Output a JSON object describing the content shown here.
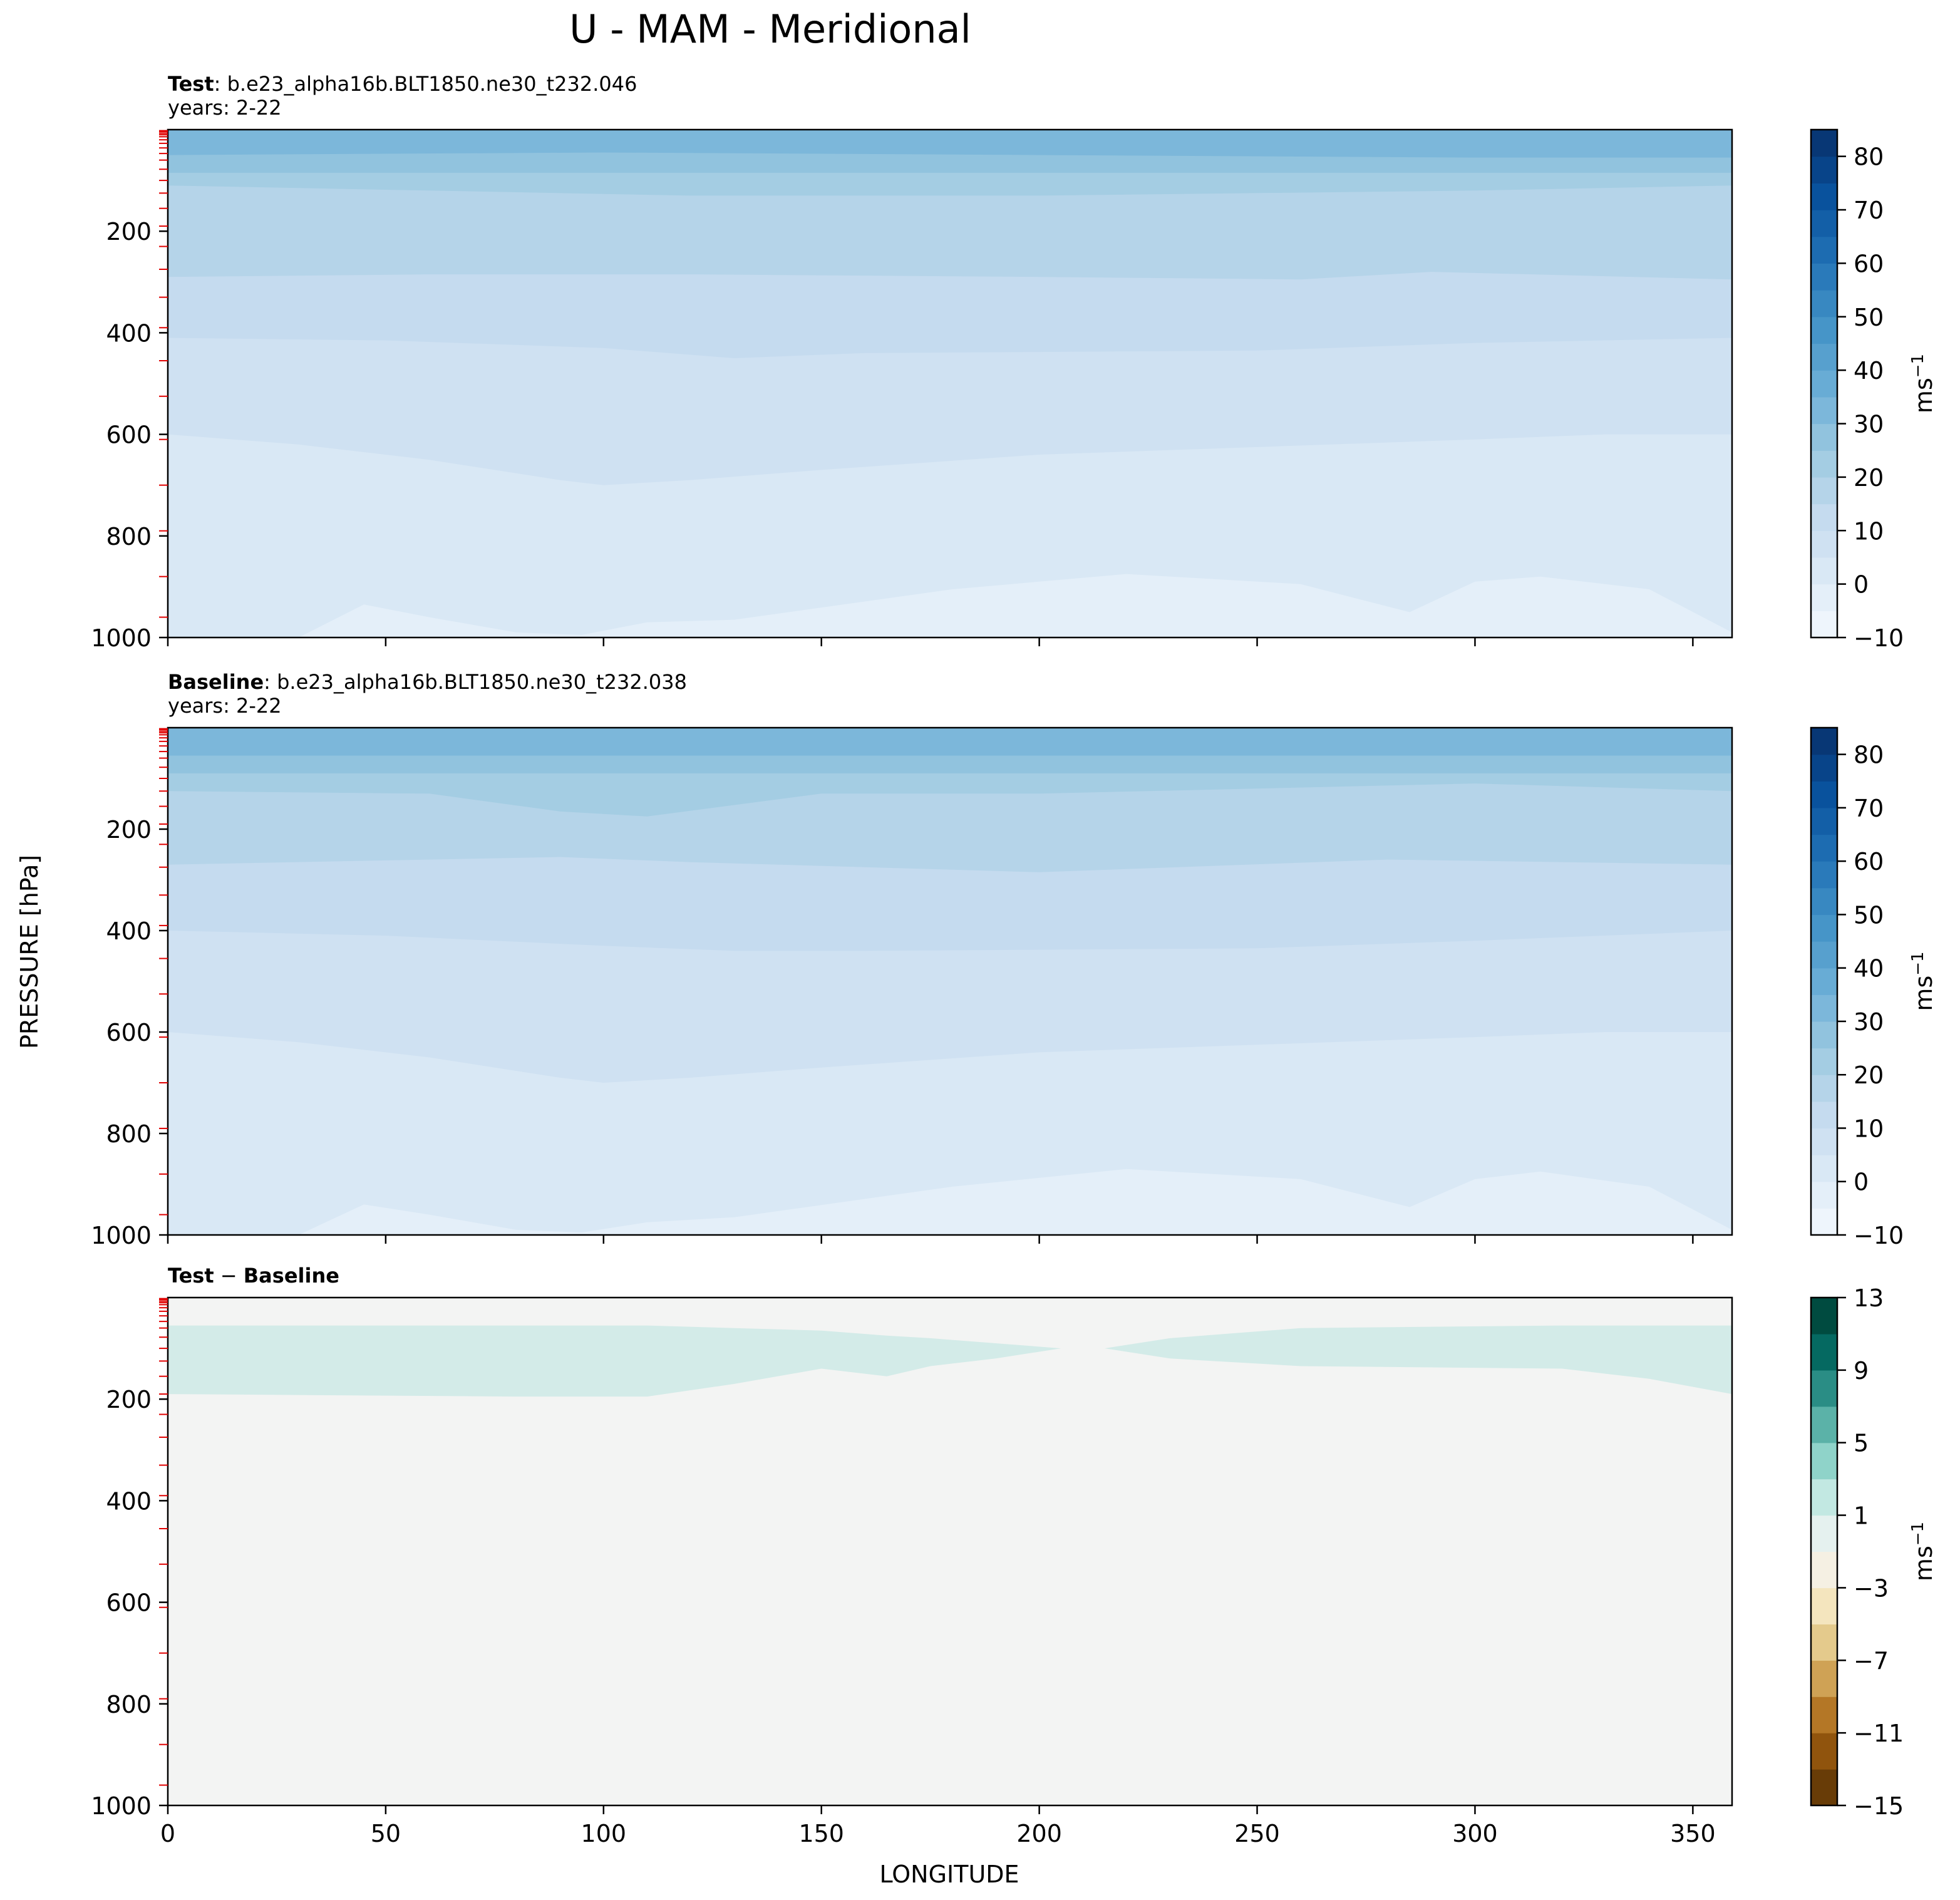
{
  "title": "U - MAM - Meridional",
  "ylabel": "PRESSURE [hPa]",
  "xlabel": "LONGITUDE",
  "chart_data": [
    {
      "type": "heatmap",
      "subtitle_bold": "Test",
      "subtitle_rest": ": b.e23_alpha16b.BLT1850.ne30_t232.046",
      "years": "years: 2-22",
      "xlim": [
        0,
        359
      ],
      "ylim": [
        1000,
        0
      ],
      "yticks": [
        200,
        400,
        600,
        800,
        1000
      ],
      "xticks": [
        0,
        50,
        100,
        150,
        200,
        250,
        300,
        350
      ],
      "show_xtick_labels": false,
      "colorbar": {
        "cmap": "Blues",
        "levels": [
          -10,
          -5,
          0,
          5,
          10,
          15,
          20,
          25,
          30,
          35,
          40,
          45,
          50,
          55,
          60,
          65,
          70,
          75,
          80,
          85
        ],
        "ticks": [
          -10,
          0,
          10,
          20,
          30,
          40,
          50,
          60,
          70,
          80
        ],
        "label": "ms",
        "label_sup": "−1"
      },
      "contours": [
        {
          "level": 0,
          "x": [
            0,
            30,
            45,
            60,
            80,
            95,
            110,
            130,
            180,
            220,
            260,
            285,
            300,
            315,
            340,
            359
          ],
          "y": [
            1000,
            1000,
            935,
            960,
            990,
            995,
            970,
            965,
            905,
            875,
            895,
            950,
            890,
            880,
            905,
            990
          ]
        },
        {
          "level": 5,
          "x": [
            0,
            30,
            60,
            75,
            90,
            100,
            120,
            150,
            200,
            250,
            300,
            330,
            359
          ],
          "y": [
            600,
            620,
            650,
            670,
            690,
            700,
            690,
            670,
            640,
            625,
            610,
            600,
            600
          ]
        },
        {
          "level": 10,
          "x": [
            0,
            50,
            100,
            130,
            160,
            250,
            300,
            359
          ],
          "y": [
            410,
            415,
            430,
            450,
            440,
            435,
            420,
            410
          ]
        },
        {
          "level": 15,
          "x": [
            0,
            60,
            120,
            200,
            260,
            290,
            359
          ],
          "y": [
            290,
            285,
            285,
            290,
            295,
            280,
            295
          ]
        },
        {
          "level": 20,
          "x": [
            0,
            60,
            120,
            200,
            300,
            359
          ],
          "y": [
            110,
            120,
            130,
            130,
            120,
            110
          ]
        },
        {
          "level": 25,
          "x": [
            0,
            100,
            200,
            300,
            359
          ],
          "y": [
            85,
            85,
            85,
            85,
            85
          ]
        },
        {
          "level": 30,
          "x": [
            0,
            100,
            200,
            300,
            359
          ],
          "y": [
            50,
            45,
            50,
            55,
            55
          ]
        }
      ]
    },
    {
      "type": "heatmap",
      "subtitle_bold": "Baseline",
      "subtitle_rest": ": b.e23_alpha16b.BLT1850.ne30_t232.038",
      "years": "years: 2-22",
      "xlim": [
        0,
        359
      ],
      "ylim": [
        1000,
        0
      ],
      "yticks": [
        200,
        400,
        600,
        800,
        1000
      ],
      "xticks": [
        0,
        50,
        100,
        150,
        200,
        250,
        300,
        350
      ],
      "show_xtick_labels": false,
      "colorbar": {
        "cmap": "Blues",
        "levels": [
          -10,
          -5,
          0,
          5,
          10,
          15,
          20,
          25,
          30,
          35,
          40,
          45,
          50,
          55,
          60,
          65,
          70,
          75,
          80,
          85
        ],
        "ticks": [
          -10,
          0,
          10,
          20,
          30,
          40,
          50,
          60,
          70,
          80
        ],
        "label": "ms",
        "label_sup": "−1"
      },
      "contours": [
        {
          "level": 0,
          "x": [
            0,
            30,
            45,
            60,
            80,
            95,
            110,
            130,
            180,
            220,
            260,
            285,
            300,
            315,
            340,
            359
          ],
          "y": [
            1000,
            1000,
            940,
            960,
            990,
            995,
            975,
            965,
            905,
            870,
            890,
            945,
            890,
            875,
            905,
            990
          ]
        },
        {
          "level": 5,
          "x": [
            0,
            30,
            60,
            75,
            90,
            100,
            120,
            150,
            200,
            250,
            300,
            330,
            359
          ],
          "y": [
            600,
            620,
            650,
            670,
            690,
            700,
            690,
            670,
            640,
            625,
            610,
            600,
            600
          ]
        },
        {
          "level": 10,
          "x": [
            0,
            50,
            100,
            130,
            160,
            250,
            300,
            359
          ],
          "y": [
            400,
            410,
            430,
            440,
            440,
            435,
            420,
            400
          ]
        },
        {
          "level": 15,
          "x": [
            0,
            60,
            90,
            120,
            200,
            280,
            359
          ],
          "y": [
            270,
            260,
            255,
            265,
            285,
            260,
            270
          ]
        },
        {
          "level": 20,
          "x": [
            0,
            60,
            90,
            110,
            150,
            200,
            300,
            359
          ],
          "y": [
            125,
            130,
            165,
            175,
            130,
            130,
            110,
            125
          ]
        },
        {
          "level": 25,
          "x": [
            0,
            100,
            200,
            300,
            359
          ],
          "y": [
            90,
            90,
            90,
            90,
            90
          ]
        },
        {
          "level": 30,
          "x": [
            0,
            100,
            200,
            300,
            359
          ],
          "y": [
            55,
            55,
            55,
            55,
            55
          ]
        }
      ]
    },
    {
      "type": "heatmap",
      "subtitle_bold": "Test",
      "subtitle_mid": " − ",
      "subtitle_bold2": "Baseline",
      "xlim": [
        0,
        359
      ],
      "ylim": [
        1000,
        0
      ],
      "yticks": [
        200,
        400,
        600,
        800,
        1000
      ],
      "xticks": [
        0,
        50,
        100,
        150,
        200,
        250,
        300,
        350
      ],
      "show_xtick_labels": true,
      "colorbar": {
        "cmap": "BrBG",
        "levels": [
          -15,
          -13,
          -11,
          -9,
          -7,
          -5,
          -3,
          -1,
          1,
          3,
          5,
          7,
          9,
          11,
          13
        ],
        "ticks": [
          -15,
          -11,
          -7,
          -3,
          1,
          5,
          9,
          13
        ],
        "label": "ms",
        "label_sup": "−1"
      },
      "regions": [
        {
          "value": 2,
          "x": [
            0,
            80,
            110,
            130,
            150,
            165,
            175,
            190,
            205,
            215,
            230,
            260,
            320,
            340,
            359
          ],
          "y_top": [
            55,
            55,
            55,
            60,
            65,
            75,
            80,
            90,
            100,
            100,
            80,
            60,
            55,
            55,
            55
          ],
          "y_bottom": [
            190,
            195,
            195,
            170,
            140,
            155,
            135,
            120,
            100,
            100,
            120,
            135,
            140,
            160,
            190
          ]
        }
      ]
    }
  ]
}
